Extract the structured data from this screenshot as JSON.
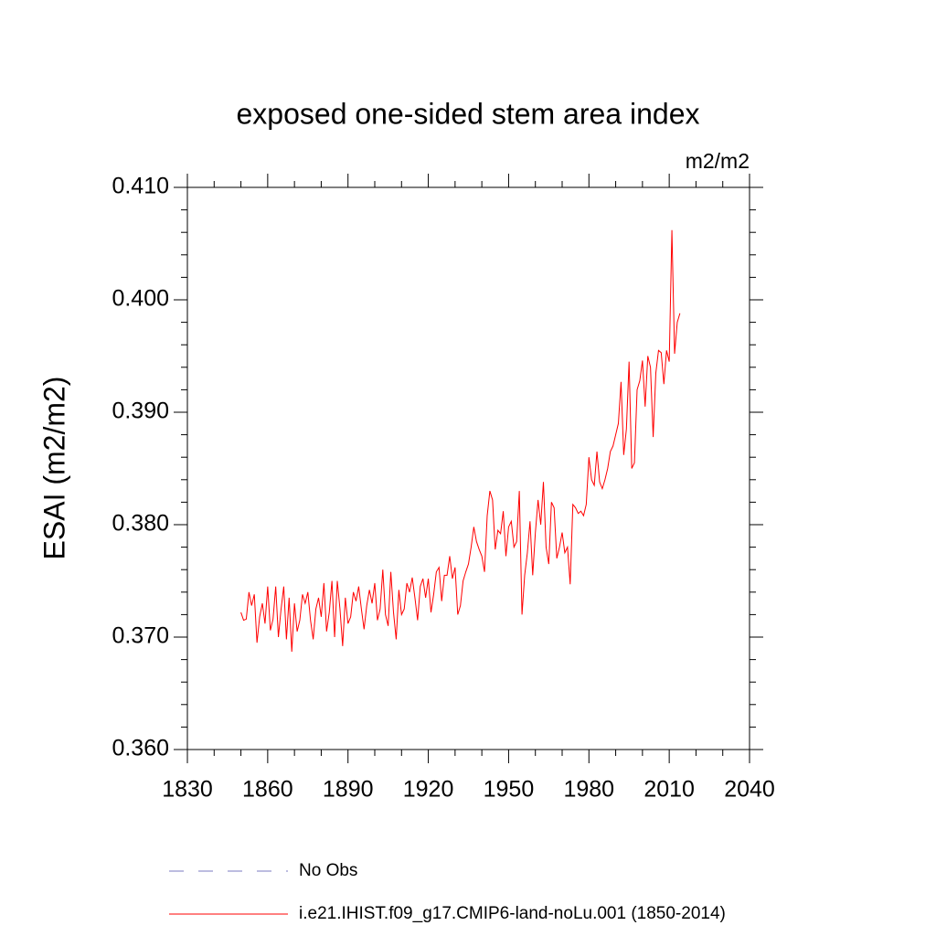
{
  "chart_data": {
    "type": "line",
    "title": "exposed one-sided stem area index",
    "units_label": "m2/m2",
    "y_label": "ESAI  (m2/m2)",
    "xlim": [
      1830,
      2040
    ],
    "xticks": [
      1830,
      1860,
      1890,
      1920,
      1950,
      1980,
      2010,
      2040
    ],
    "xminorticks": [
      1840,
      1850,
      1870,
      1880,
      1900,
      1910,
      1930,
      1940,
      1960,
      1970,
      1990,
      2000,
      2020,
      2030
    ],
    "ylim": [
      0.36,
      0.41
    ],
    "yticks": [
      {
        "value": 0.36,
        "label": "0.360"
      },
      {
        "value": 0.37,
        "label": "0.370"
      },
      {
        "value": 0.38,
        "label": "0.380"
      },
      {
        "value": 0.39,
        "label": "0.390"
      },
      {
        "value": 0.4,
        "label": "0.400"
      },
      {
        "value": 0.41,
        "label": "0.410"
      }
    ],
    "yminorticks": [
      0.362,
      0.364,
      0.366,
      0.368,
      0.372,
      0.374,
      0.376,
      0.378,
      0.382,
      0.384,
      0.386,
      0.388,
      0.392,
      0.394,
      0.396,
      0.398,
      0.402,
      0.404,
      0.406,
      0.408
    ],
    "grid": false,
    "legend": [
      {
        "name": "No Obs",
        "color": "#7b7bc0",
        "dashed": true
      }
    ],
    "x": [
      1850,
      1851,
      1852,
      1853,
      1854,
      1855,
      1856,
      1857,
      1858,
      1859,
      1860,
      1861,
      1862,
      1863,
      1864,
      1865,
      1866,
      1867,
      1868,
      1869,
      1870,
      1871,
      1872,
      1873,
      1874,
      1875,
      1876,
      1877,
      1878,
      1879,
      1880,
      1881,
      1882,
      1883,
      1884,
      1885,
      1886,
      1887,
      1888,
      1889,
      1890,
      1891,
      1892,
      1893,
      1894,
      1895,
      1896,
      1897,
      1898,
      1899,
      1900,
      1901,
      1902,
      1903,
      1904,
      1905,
      1906,
      1907,
      1908,
      1909,
      1910,
      1911,
      1912,
      1913,
      1914,
      1915,
      1916,
      1917,
      1918,
      1919,
      1920,
      1921,
      1922,
      1923,
      1924,
      1925,
      1926,
      1927,
      1928,
      1929,
      1930,
      1931,
      1932,
      1933,
      1934,
      1935,
      1936,
      1937,
      1938,
      1939,
      1940,
      1941,
      1942,
      1943,
      1944,
      1945,
      1946,
      1947,
      1948,
      1949,
      1950,
      1951,
      1952,
      1953,
      1954,
      1955,
      1956,
      1957,
      1958,
      1959,
      1960,
      1961,
      1962,
      1963,
      1964,
      1965,
      1966,
      1967,
      1968,
      1969,
      1970,
      1971,
      1972,
      1973,
      1974,
      1975,
      1976,
      1977,
      1978,
      1979,
      1980,
      1981,
      1982,
      1983,
      1984,
      1985,
      1986,
      1987,
      1988,
      1989,
      1990,
      1991,
      1992,
      1993,
      1994,
      1995,
      1996,
      1997,
      1998,
      1999,
      2000,
      2001,
      2002,
      2003,
      2004,
      2005,
      2006,
      2007,
      2008,
      2009,
      2010,
      2011,
      2012,
      2013,
      2014
    ],
    "series": [
      {
        "name": "i.e21.IHIST.f09_g17.CMIP6-land-noLu.001 (1850-2014)",
        "color": "#ff0000",
        "values": [
          0.3722,
          0.3715,
          0.3716,
          0.374,
          0.3728,
          0.3738,
          0.3695,
          0.3718,
          0.373,
          0.3712,
          0.3745,
          0.3706,
          0.3716,
          0.3745,
          0.37,
          0.3725,
          0.3745,
          0.3698,
          0.3735,
          0.3687,
          0.373,
          0.3705,
          0.3715,
          0.3738,
          0.373,
          0.374,
          0.3715,
          0.3698,
          0.3725,
          0.3735,
          0.3718,
          0.3748,
          0.3705,
          0.3722,
          0.375,
          0.37,
          0.375,
          0.3725,
          0.3692,
          0.3735,
          0.3712,
          0.3718,
          0.374,
          0.3732,
          0.3745,
          0.3725,
          0.3707,
          0.3728,
          0.3742,
          0.373,
          0.3748,
          0.3715,
          0.3725,
          0.376,
          0.372,
          0.371,
          0.3758,
          0.3722,
          0.3698,
          0.3742,
          0.372,
          0.3725,
          0.3748,
          0.374,
          0.3753,
          0.3735,
          0.3715,
          0.3745,
          0.3752,
          0.3735,
          0.3752,
          0.3722,
          0.3738,
          0.3758,
          0.3762,
          0.3732,
          0.3755,
          0.3755,
          0.3772,
          0.3752,
          0.3762,
          0.372,
          0.3728,
          0.375,
          0.3758,
          0.3765,
          0.378,
          0.3798,
          0.3785,
          0.3778,
          0.3772,
          0.3758,
          0.3808,
          0.383,
          0.3822,
          0.3778,
          0.3795,
          0.3792,
          0.3812,
          0.3772,
          0.3798,
          0.3803,
          0.378,
          0.3785,
          0.383,
          0.372,
          0.3755,
          0.3775,
          0.3803,
          0.3755,
          0.3793,
          0.3822,
          0.38,
          0.3838,
          0.378,
          0.3765,
          0.382,
          0.3815,
          0.377,
          0.378,
          0.3793,
          0.3775,
          0.378,
          0.3747,
          0.3818,
          0.3815,
          0.381,
          0.3812,
          0.3808,
          0.3818,
          0.386,
          0.384,
          0.3835,
          0.3865,
          0.3838,
          0.3832,
          0.384,
          0.385,
          0.3865,
          0.387,
          0.388,
          0.389,
          0.3927,
          0.3862,
          0.3885,
          0.3945,
          0.385,
          0.3855,
          0.392,
          0.3928,
          0.3946,
          0.3905,
          0.395,
          0.394,
          0.3878,
          0.3935,
          0.3955,
          0.3953,
          0.3925,
          0.3955,
          0.3945,
          0.4062,
          0.3952,
          0.398,
          0.3988
        ]
      }
    ]
  }
}
